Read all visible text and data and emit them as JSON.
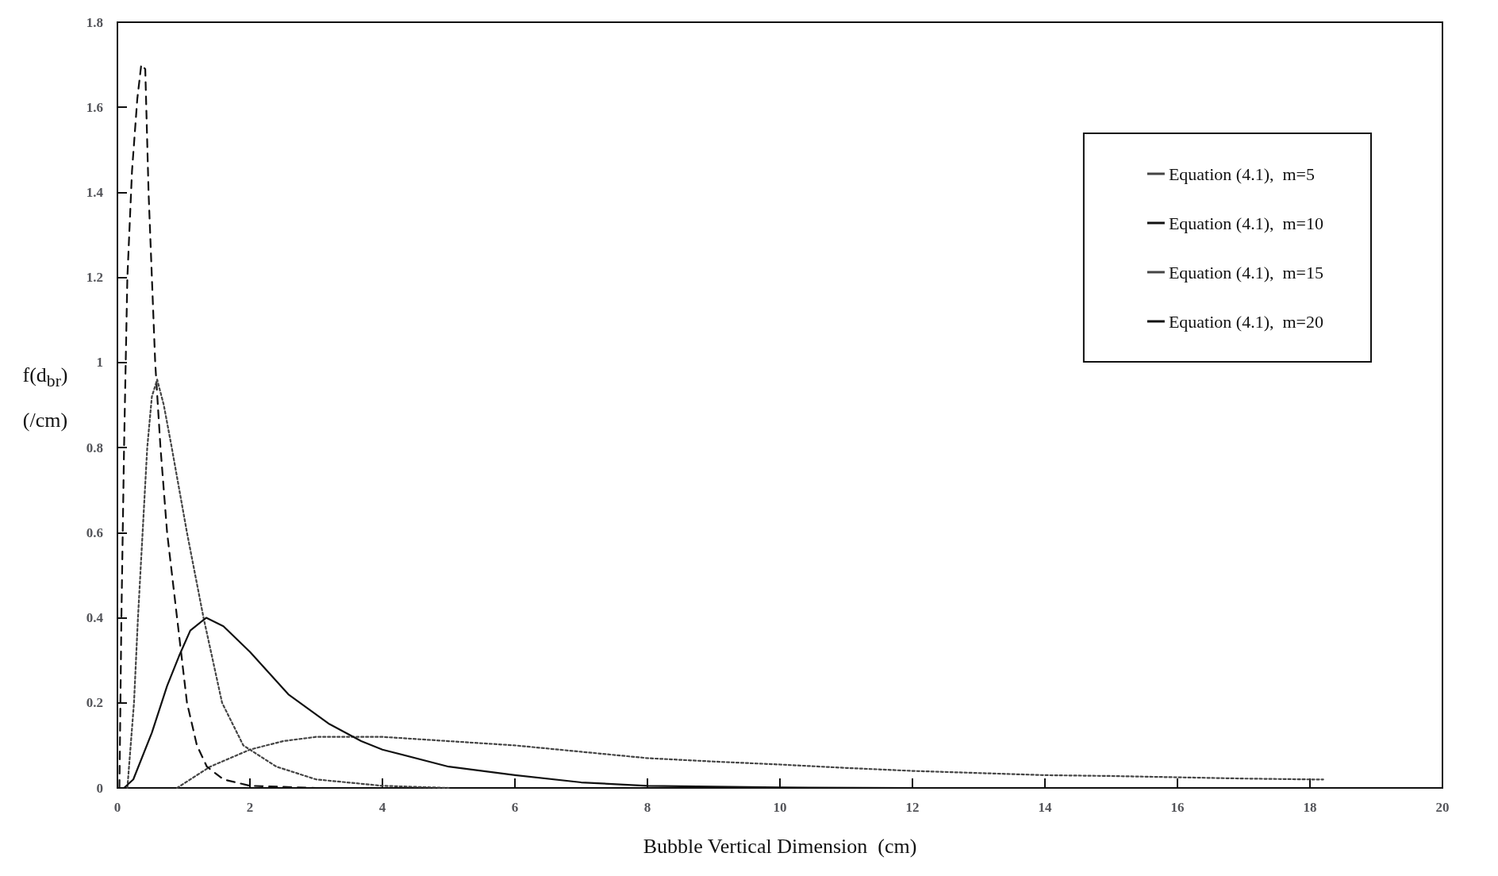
{
  "chart_data": {
    "type": "line",
    "xlabel": "Bubble Vertical Dimension  (cm)",
    "ylabel": "f(d$_{br}$) (/cm)",
    "xlim": [
      0,
      20
    ],
    "xticks": [
      0,
      2,
      4,
      6,
      8,
      10,
      12,
      14,
      16,
      18,
      20
    ],
    "ylim": [
      0,
      1.8
    ],
    "yticks": [
      0,
      0.2,
      0.4,
      0.6,
      0.8,
      1,
      1.2,
      1.4,
      1.6,
      1.8
    ],
    "grid": false,
    "legend": "top right",
    "marker": "none",
    "series": [
      {
        "name": "Equation (4.1),  m=5",
        "color": "#444444",
        "line_style": "dotted",
        "x": [
          0.9,
          1.4,
          2,
          2.5,
          3,
          3.5,
          4,
          5,
          6,
          7,
          8,
          9,
          10,
          11,
          12,
          13,
          14,
          15,
          16,
          17,
          18,
          18.2
        ],
        "values": [
          0,
          0.05,
          0.09,
          0.11,
          0.12,
          0.12,
          0.12,
          0.11,
          0.1,
          0.085,
          0.07,
          0.062,
          0.055,
          0.047,
          0.04,
          0.035,
          0.03,
          0.028,
          0.025,
          0.022,
          0.02,
          0.02
        ]
      },
      {
        "name": "Equation (4.1),  m=10",
        "color": "#111111",
        "line_style": "dashed",
        "x": [
          0.03,
          0.06,
          0.1,
          0.15,
          0.22,
          0.3,
          0.36,
          0.42,
          0.47,
          0.52,
          0.57,
          0.65,
          0.75,
          0.9,
          1.05,
          1.2,
          1.35,
          1.6,
          2,
          3
        ],
        "values": [
          0,
          0.4,
          0.8,
          1.2,
          1.45,
          1.62,
          1.7,
          1.69,
          1.4,
          1.2,
          1.0,
          0.8,
          0.6,
          0.4,
          0.2,
          0.1,
          0.05,
          0.02,
          0.005,
          0
        ]
      },
      {
        "name": "Equation (4.1),  m=15",
        "color": "#444444",
        "line_style": "dotted",
        "x": [
          0.15,
          0.2,
          0.25,
          0.31,
          0.38,
          0.45,
          0.52,
          0.6,
          0.7,
          0.82,
          1.05,
          1.3,
          1.58,
          1.9,
          2.4,
          3,
          4,
          5
        ],
        "values": [
          0,
          0.1,
          0.2,
          0.4,
          0.6,
          0.8,
          0.92,
          0.96,
          0.9,
          0.8,
          0.6,
          0.4,
          0.2,
          0.1,
          0.05,
          0.02,
          0.005,
          0
        ]
      },
      {
        "name": "Equation (4.1),  m=20",
        "color": "#111111",
        "line_style": "solid",
        "x": [
          0.1,
          0.24,
          0.52,
          0.75,
          0.93,
          1.1,
          1.34,
          1.6,
          2,
          2.58,
          3.2,
          3.68,
          4,
          5,
          6,
          7,
          8,
          10,
          12
        ],
        "values": [
          0,
          0.02,
          0.13,
          0.24,
          0.31,
          0.37,
          0.4,
          0.38,
          0.32,
          0.22,
          0.15,
          0.11,
          0.09,
          0.05,
          0.03,
          0.013,
          0.005,
          0.001,
          0
        ]
      }
    ]
  }
}
